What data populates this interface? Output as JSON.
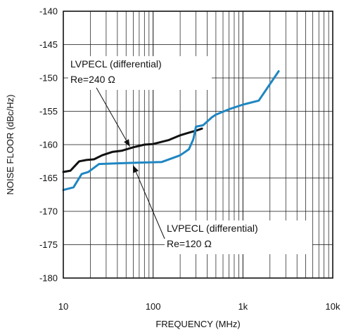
{
  "chart_data": {
    "type": "line",
    "xlabel": "FREQUENCY (MHz)",
    "ylabel": "NOISE FLOOR (dBc/Hz)",
    "x_scale": "log",
    "xlim": [
      10,
      10000
    ],
    "ylim": [
      -180,
      -140
    ],
    "x_ticks": [
      {
        "value": 10,
        "label": "10"
      },
      {
        "value": 100,
        "label": "100"
      },
      {
        "value": 1000,
        "label": "1k"
      },
      {
        "value": 10000,
        "label": "10k"
      }
    ],
    "y_ticks": [
      {
        "value": -140,
        "label": "-140"
      },
      {
        "value": -145,
        "label": "-145"
      },
      {
        "value": -150,
        "label": "-150"
      },
      {
        "value": -155,
        "label": "-155"
      },
      {
        "value": -160,
        "label": "-160"
      },
      {
        "value": -165,
        "label": "-165"
      },
      {
        "value": -170,
        "label": "-170"
      },
      {
        "value": -175,
        "label": "-175"
      },
      {
        "value": -180,
        "label": "-180"
      }
    ],
    "grid": true,
    "series": [
      {
        "color": "#111111",
        "points": [
          [
            10,
            -164.1
          ],
          [
            12,
            -163.9
          ],
          [
            15,
            -162.5
          ],
          [
            18,
            -162.3
          ],
          [
            22,
            -162.2
          ],
          [
            27,
            -161.6
          ],
          [
            35,
            -161.1
          ],
          [
            45,
            -160.9
          ],
          [
            60,
            -160.4
          ],
          [
            80,
            -160.0
          ],
          [
            100,
            -159.9
          ],
          [
            150,
            -159.3
          ],
          [
            200,
            -158.6
          ],
          [
            250,
            -158.2
          ],
          [
            300,
            -157.9
          ],
          [
            350,
            -157.6
          ]
        ]
      },
      {
        "color": "#1f86c2",
        "points": [
          [
            10,
            -166.8
          ],
          [
            13,
            -166.4
          ],
          [
            16,
            -164.4
          ],
          [
            19,
            -164.1
          ],
          [
            25,
            -162.9
          ],
          [
            40,
            -162.8
          ],
          [
            70,
            -162.7
          ],
          [
            125,
            -162.6
          ],
          [
            200,
            -161.6
          ],
          [
            250,
            -160.7
          ],
          [
            280,
            -159.2
          ],
          [
            300,
            -157.3
          ],
          [
            360,
            -157.1
          ],
          [
            450,
            -155.9
          ],
          [
            500,
            -155.5
          ],
          [
            700,
            -154.7
          ],
          [
            1000,
            -154.0
          ],
          [
            1500,
            -153.4
          ],
          [
            2500,
            -149.0
          ]
        ]
      }
    ],
    "annotations": [
      {
        "lines": [
          "LVPECL (differential)",
          "Re=240 Ω"
        ],
        "arrow_to": [
          55,
          -160.4
        ],
        "anchor": "upper-left"
      },
      {
        "lines": [
          "LVPECL (differential)",
          "Re=120 Ω"
        ],
        "arrow_to": [
          60,
          -162.7
        ],
        "anchor": "lower-right"
      }
    ]
  }
}
